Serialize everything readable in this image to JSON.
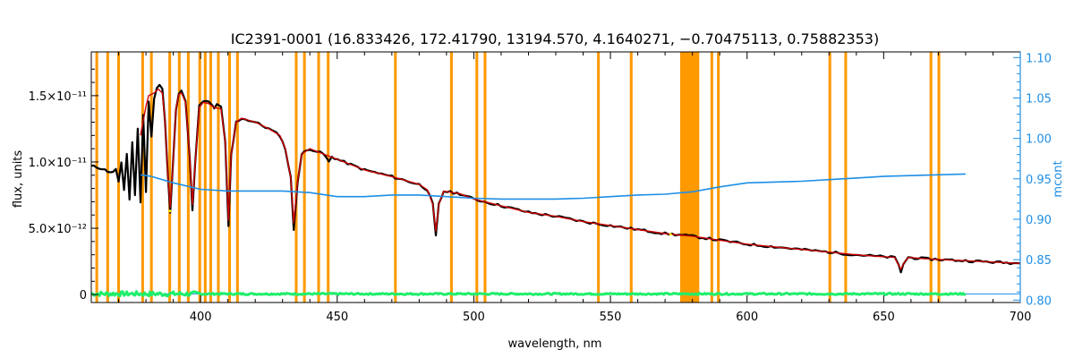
{
  "chart_data": {
    "type": "line",
    "title": "IC2391-0001    (16.833426, 172.41790, 13194.570, 4.1640271, −0.70475113, 0.75882353)",
    "xlabel": "wavelength, nm",
    "ylabel": "flux, units",
    "y2label": "mcont",
    "xlim": [
      360,
      700
    ],
    "ylim": [
      -6e-13,
      1.83e-11
    ],
    "y2lim": [
      0.797,
      1.107
    ],
    "x_ticks": [
      400,
      450,
      500,
      550,
      600,
      650,
      700
    ],
    "x_tick_labels": [
      "400",
      "450",
      "500",
      "550",
      "600",
      "650",
      "700"
    ],
    "y_ticks": [
      0,
      5e-12,
      1e-11,
      1.5e-11
    ],
    "y_tick_labels": [
      "0",
      "5.0×10⁻¹²",
      "1.0×10⁻¹¹",
      "1.5×10⁻¹¹"
    ],
    "y2_ticks": [
      0.8,
      0.85,
      0.9,
      0.95,
      1.0,
      1.05,
      1.1
    ],
    "y2_tick_labels": [
      "0.80",
      "0.85",
      "0.90",
      "0.95",
      "1.00",
      "1.05",
      "1.10"
    ],
    "masked_regions": [
      [
        361.5,
        362.5
      ],
      [
        365.5,
        366.5
      ],
      [
        369.5,
        370.5
      ],
      [
        378.3,
        379.3
      ],
      [
        381.5,
        382.5
      ],
      [
        388.2,
        389.2
      ],
      [
        391.7,
        392.7
      ],
      [
        395.0,
        396.0
      ],
      [
        399.2,
        400.2
      ],
      [
        401.2,
        402.2
      ],
      [
        403.2,
        404.2
      ],
      [
        406.0,
        407.0
      ],
      [
        410.1,
        411.1
      ],
      [
        413.0,
        414.0
      ],
      [
        434.5,
        435.5
      ],
      [
        437.5,
        438.5
      ],
      [
        442.7,
        443.7
      ],
      [
        446.2,
        447.2
      ],
      [
        470.8,
        471.8
      ],
      [
        491.3,
        492.3
      ],
      [
        500.6,
        501.6
      ],
      [
        503.6,
        504.6
      ],
      [
        545.1,
        546.1
      ],
      [
        557.1,
        558.1
      ],
      [
        575.5,
        582.5
      ],
      [
        586.6,
        587.6
      ],
      [
        589.0,
        590.0
      ],
      [
        629.8,
        630.8
      ],
      [
        635.6,
        636.6
      ],
      [
        666.8,
        667.8
      ],
      [
        669.7,
        670.7
      ]
    ],
    "series": [
      {
        "values": [
          [
            360,
            9.7e-12
          ],
          [
            362,
            9.6e-12
          ],
          [
            364,
            9.5e-12
          ],
          [
            366,
            9.3e-12
          ],
          [
            368,
            9.2e-12
          ],
          [
            369,
            9.5e-12
          ],
          [
            370,
            8.5e-12
          ],
          [
            371,
            9.9e-12
          ],
          [
            372,
            7.8e-12
          ],
          [
            373,
            1.06e-11
          ],
          [
            374,
            7.2e-12
          ],
          [
            375,
            1.15e-11
          ],
          [
            376,
            7.5e-12
          ],
          [
            377,
            1.25e-11
          ],
          [
            378,
            7e-12
          ],
          [
            379,
            1.35e-11
          ],
          [
            380,
            7.8e-12
          ],
          [
            381,
            1.45e-11
          ],
          [
            382,
            1.2e-11
          ],
          [
            383,
            1.48e-11
          ],
          [
            384,
            1.56e-11
          ],
          [
            385,
            1.58e-11
          ],
          [
            386,
            1.55e-11
          ],
          [
            387,
            1.3e-11
          ],
          [
            388,
            9e-12
          ],
          [
            388.9,
            6.2e-12
          ],
          [
            389.8,
            9.5e-12
          ],
          [
            391,
            1.4e-11
          ],
          [
            392,
            1.52e-11
          ],
          [
            393,
            1.54e-11
          ],
          [
            394.5,
            1.45e-11
          ],
          [
            396,
            1.05e-11
          ],
          [
            397,
            6.3e-12
          ],
          [
            398,
            9.8e-12
          ],
          [
            399.5,
            1.42e-11
          ],
          [
            401,
            1.46e-11
          ],
          [
            403,
            1.45e-11
          ],
          [
            404.5,
            1.42e-11
          ],
          [
            405,
            1.4e-11
          ],
          [
            406,
            1.44e-11
          ],
          [
            407.5,
            1.41e-11
          ],
          [
            409,
            1.15e-11
          ],
          [
            410.2,
            5.1e-12
          ],
          [
            411.2,
            1.05e-11
          ],
          [
            413,
            1.3e-11
          ],
          [
            415,
            1.33e-11
          ],
          [
            420,
            1.3e-11
          ],
          [
            425,
            1.25e-11
          ],
          [
            429,
            1.2e-11
          ],
          [
            431,
            1.1e-11
          ],
          [
            433,
            8.8e-12
          ],
          [
            434.1,
            4.9e-12
          ],
          [
            435.5,
            8.5e-12
          ],
          [
            437,
            1.06e-11
          ],
          [
            440,
            1.1e-11
          ],
          [
            445,
            1.06e-11
          ],
          [
            447,
            1e-11
          ],
          [
            448,
            1.04e-11
          ],
          [
            450,
            1.02e-11
          ],
          [
            460,
            9.4e-12
          ],
          [
            470,
            8.9e-12
          ],
          [
            480,
            8.3e-12
          ],
          [
            483,
            7.9e-12
          ],
          [
            485,
            6.8e-12
          ],
          [
            486.1,
            4.4e-12
          ],
          [
            487.2,
            6.8e-12
          ],
          [
            489,
            7.8e-12
          ],
          [
            495,
            7.6e-12
          ],
          [
            500,
            7.2e-12
          ],
          [
            510,
            6.7e-12
          ],
          [
            520,
            6.2e-12
          ],
          [
            530,
            5.9e-12
          ],
          [
            540,
            5.5e-12
          ],
          [
            550,
            5.2e-12
          ],
          [
            560,
            4.9e-12
          ],
          [
            570,
            4.6e-12
          ],
          [
            580,
            4.4e-12
          ],
          [
            590,
            4.1e-12
          ],
          [
            600,
            3.8e-12
          ],
          [
            610,
            3.6e-12
          ],
          [
            620,
            3.4e-12
          ],
          [
            630,
            3.2e-12
          ],
          [
            640,
            3e-12
          ],
          [
            650,
            2.85e-12
          ],
          [
            654,
            2.8e-12
          ],
          [
            655.5,
            2.2e-12
          ],
          [
            656.3,
            1.7e-12
          ],
          [
            657.2,
            2.3e-12
          ],
          [
            659,
            2.8e-12
          ],
          [
            665,
            2.7e-12
          ],
          [
            670,
            2.65e-12
          ],
          [
            680,
            2.55e-12
          ],
          [
            690,
            2.45e-12
          ],
          [
            700,
            2.35e-12
          ]
        ]
      },
      {
        "values": [
          [
            378,
            1.2e-11
          ],
          [
            380,
            1.42e-11
          ],
          [
            381,
            1.5e-11
          ],
          [
            383,
            1.52e-11
          ],
          [
            384.5,
            1.55e-11
          ],
          [
            386,
            1.52e-11
          ],
          [
            387,
            1.3e-11
          ],
          [
            388,
            9e-12
          ],
          [
            388.9,
            6.6e-12
          ],
          [
            389.8,
            9.5e-12
          ],
          [
            391,
            1.4e-11
          ],
          [
            392,
            1.51e-11
          ],
          [
            393,
            1.52e-11
          ],
          [
            394.5,
            1.45e-11
          ],
          [
            396,
            1.05e-11
          ],
          [
            397,
            6.8e-12
          ],
          [
            398,
            9.8e-12
          ],
          [
            399.5,
            1.41e-11
          ],
          [
            401,
            1.45e-11
          ],
          [
            403,
            1.44e-11
          ],
          [
            405,
            1.41e-11
          ],
          [
            407.5,
            1.4e-11
          ],
          [
            409,
            1.15e-11
          ],
          [
            410.2,
            5.6e-12
          ],
          [
            411.2,
            1.05e-11
          ],
          [
            413,
            1.3e-11
          ],
          [
            415,
            1.33e-11
          ],
          [
            420,
            1.3e-11
          ],
          [
            425,
            1.25e-11
          ],
          [
            429,
            1.2e-11
          ],
          [
            431,
            1.1e-11
          ],
          [
            433,
            8.8e-12
          ],
          [
            434.1,
            5.4e-12
          ],
          [
            435.5,
            8.5e-12
          ],
          [
            437,
            1.06e-11
          ],
          [
            440,
            1.1e-11
          ],
          [
            445,
            1.06e-11
          ],
          [
            450,
            1.02e-11
          ],
          [
            460,
            9.4e-12
          ],
          [
            470,
            8.9e-12
          ],
          [
            480,
            8.3e-12
          ],
          [
            483,
            7.9e-12
          ],
          [
            485,
            6.8e-12
          ],
          [
            486.1,
            4.8e-12
          ],
          [
            487.2,
            6.8e-12
          ],
          [
            489,
            7.8e-12
          ],
          [
            495,
            7.6e-12
          ],
          [
            500,
            7.2e-12
          ],
          [
            510,
            6.7e-12
          ],
          [
            520,
            6.2e-12
          ],
          [
            530,
            5.9e-12
          ],
          [
            540,
            5.5e-12
          ],
          [
            550,
            5.2e-12
          ],
          [
            560,
            4.9e-12
          ],
          [
            570,
            4.6e-12
          ],
          [
            580,
            4.4e-12
          ],
          [
            590,
            4.1e-12
          ],
          [
            600,
            3.8e-12
          ],
          [
            610,
            3.6e-12
          ],
          [
            620,
            3.4e-12
          ],
          [
            630,
            3.2e-12
          ],
          [
            640,
            3e-12
          ],
          [
            650,
            2.85e-12
          ],
          [
            654,
            2.8e-12
          ],
          [
            655.5,
            2.2e-12
          ],
          [
            656.3,
            1.9e-12
          ],
          [
            657.2,
            2.3e-12
          ],
          [
            659,
            2.8e-12
          ],
          [
            665,
            2.7e-12
          ],
          [
            670,
            2.65e-12
          ],
          [
            680,
            2.55e-12
          ],
          [
            690,
            2.45e-12
          ],
          [
            700,
            2.35e-12
          ]
        ]
      },
      {
        "axis": "right",
        "values": [
          [
            378,
            0.955
          ],
          [
            382,
            0.953
          ],
          [
            390,
            0.945
          ],
          [
            400,
            0.937
          ],
          [
            410,
            0.935
          ],
          [
            420,
            0.935
          ],
          [
            430,
            0.935
          ],
          [
            440,
            0.933
          ],
          [
            450,
            0.928
          ],
          [
            460,
            0.928
          ],
          [
            470,
            0.93
          ],
          [
            480,
            0.93
          ],
          [
            490,
            0.928
          ],
          [
            500,
            0.926
          ],
          [
            510,
            0.925
          ],
          [
            520,
            0.925
          ],
          [
            530,
            0.925
          ],
          [
            540,
            0.926
          ],
          [
            550,
            0.928
          ],
          [
            560,
            0.93
          ],
          [
            570,
            0.931
          ],
          [
            580,
            0.934
          ],
          [
            590,
            0.94
          ],
          [
            600,
            0.945
          ],
          [
            610,
            0.946
          ],
          [
            620,
            0.947
          ],
          [
            630,
            0.949
          ],
          [
            640,
            0.951
          ],
          [
            650,
            0.953
          ],
          [
            660,
            0.954
          ],
          [
            670,
            0.955
          ],
          [
            680,
            0.956
          ]
        ]
      },
      {
        "values": [
          [
            360,
            8e-14
          ],
          [
            380,
            1.2e-13
          ],
          [
            400,
            5e-14
          ],
          [
            450,
            5e-14
          ],
          [
            500,
            5e-14
          ],
          [
            550,
            5e-14
          ],
          [
            600,
            5e-14
          ],
          [
            650,
            5e-14
          ],
          [
            700,
            5e-14
          ]
        ]
      }
    ],
    "colors": {
      "observed": "#000000",
      "model": "#cc0000",
      "mcont": "#1e8fe6",
      "residual": "#1fee6b",
      "mask": "#ff9900",
      "right_axis": "#1e8fe6",
      "yellow_dots": "#ffee00"
    }
  }
}
